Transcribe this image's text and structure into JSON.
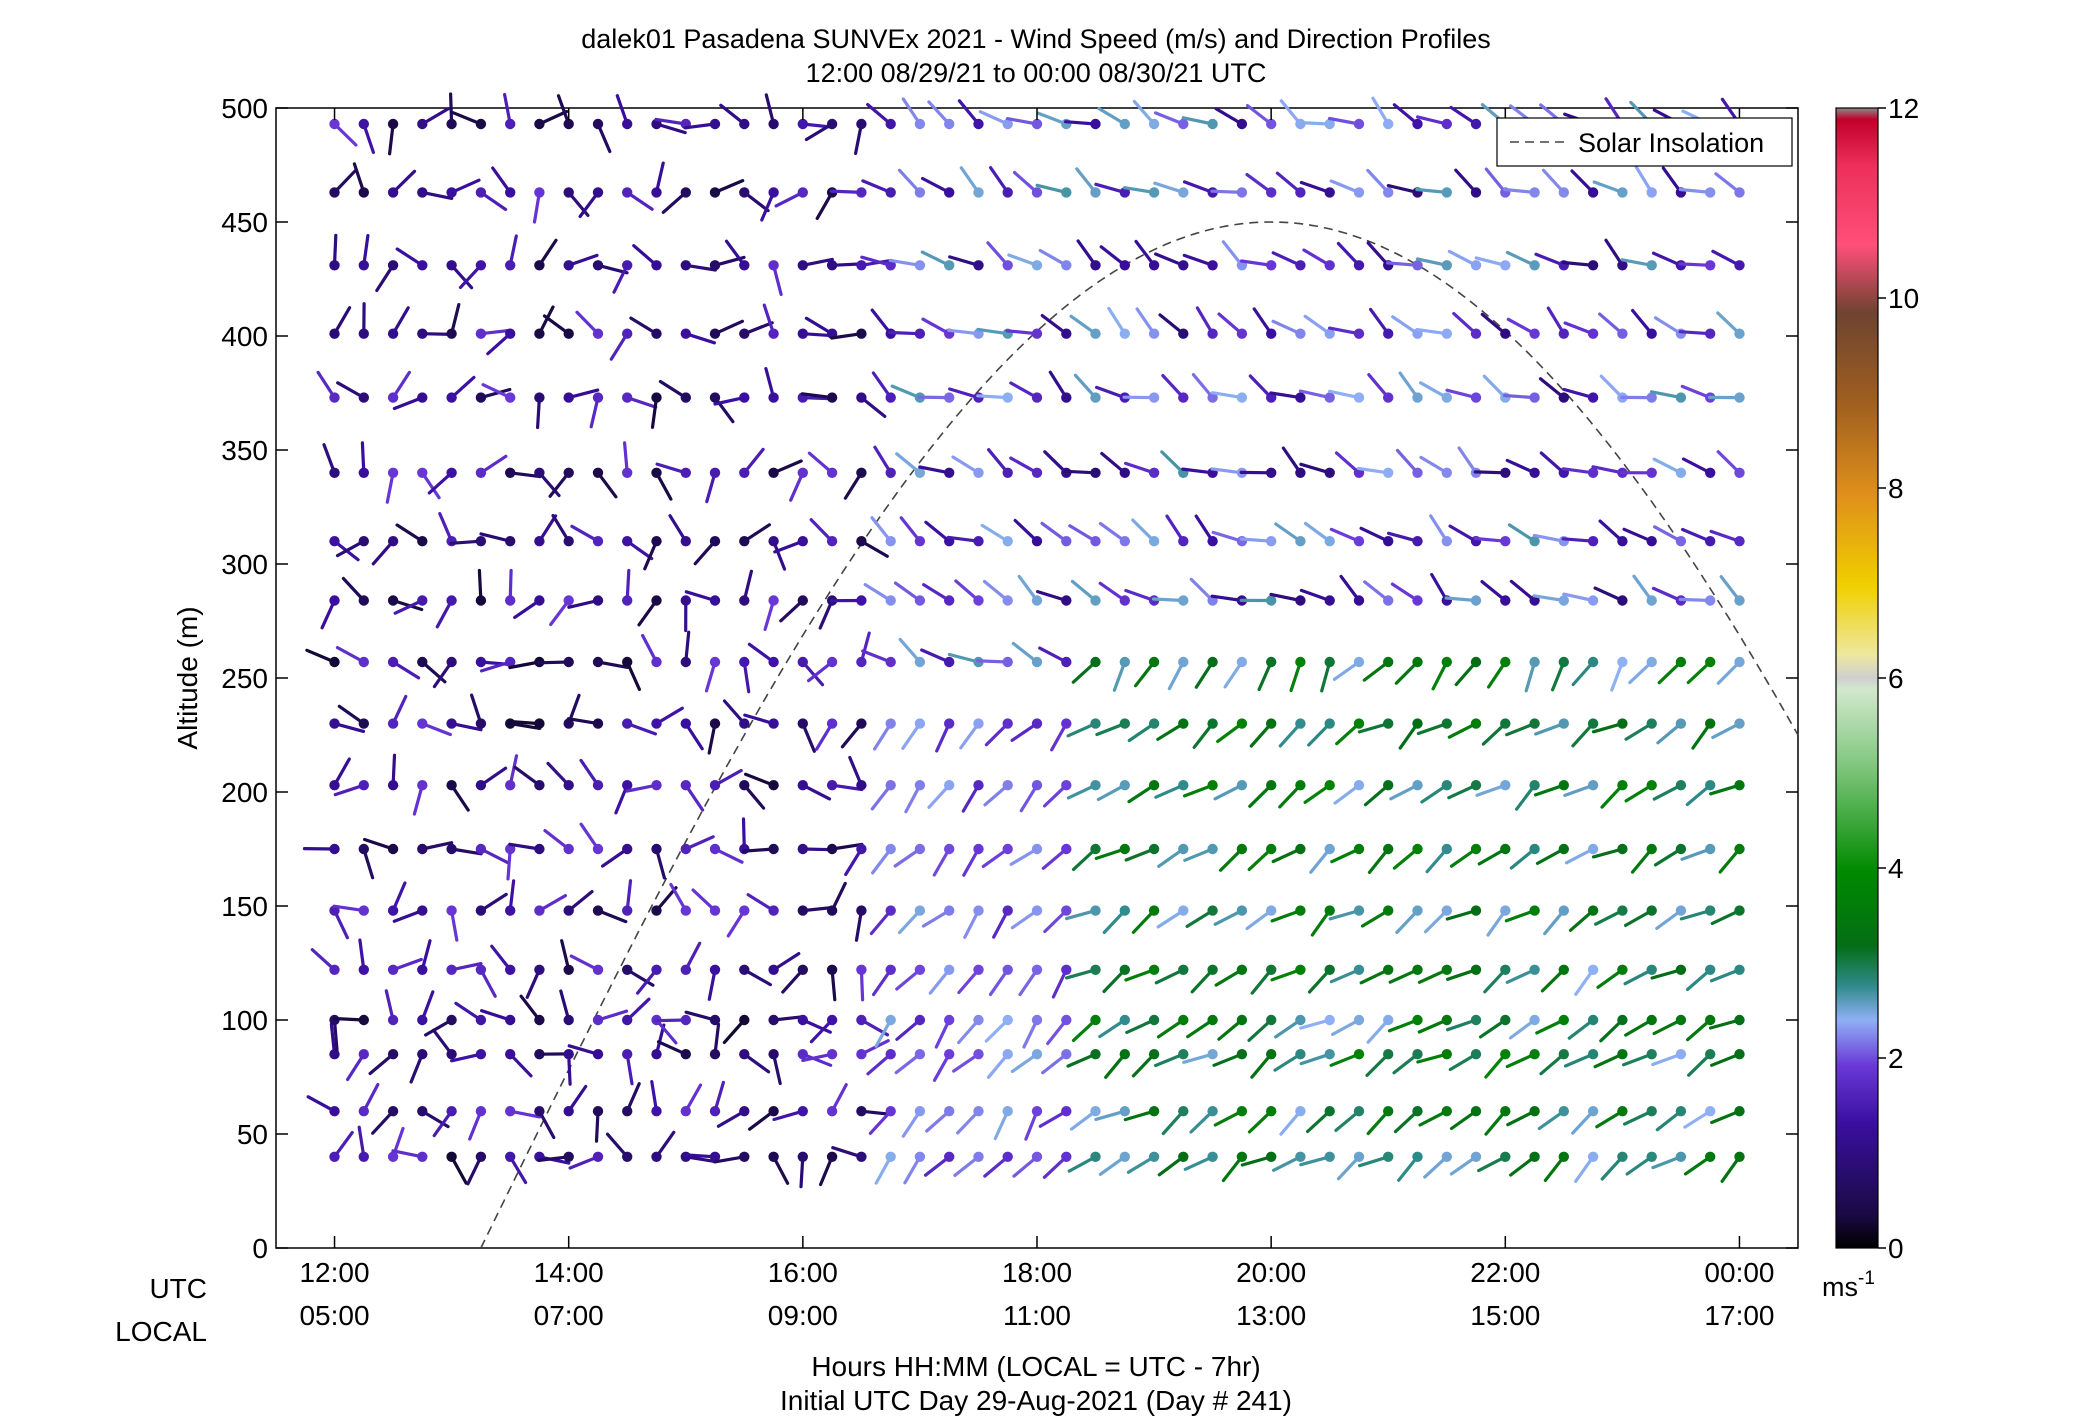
{
  "chart_data": {
    "type": "wind-profile",
    "title": "dalek01 Pasadena SUNVEx 2021 - Wind Speed (m/s) and Direction Profiles",
    "subtitle": "12:00 08/29/21 to 00:00 08/30/21  UTC",
    "ylabel": "Altitude (m)",
    "ylim": [
      0,
      500
    ],
    "yticks": [
      0,
      50,
      100,
      150,
      200,
      250,
      300,
      350,
      400,
      450,
      500
    ],
    "xlim_hours": [
      11.5,
      24.5
    ],
    "xticks_hours": [
      12,
      14,
      16,
      18,
      20,
      22,
      24
    ],
    "xticks_utc": [
      "12:00",
      "14:00",
      "16:00",
      "18:00",
      "20:00",
      "22:00",
      "00:00"
    ],
    "xticks_local": [
      "05:00",
      "07:00",
      "09:00",
      "11:00",
      "13:00",
      "15:00",
      "17:00"
    ],
    "row_labels": {
      "utc": "UTC",
      "local": "LOCAL"
    },
    "xlabel": "Hours HH:MM  (LOCAL = UTC - 7hr)",
    "xlabel2": "Initial UTC Day 29-Aug-2021 (Day # 241)",
    "legend": {
      "label": "Solar Insolation",
      "position": "top-right"
    },
    "colorbar": {
      "range": [
        0,
        12
      ],
      "ticks": [
        0,
        2,
        4,
        6,
        8,
        10,
        12
      ],
      "unit_base": "ms",
      "unit_exp": "-1"
    },
    "solar_insolation": {
      "start_hour": 13.25,
      "peak_hour": 20.0,
      "peak_altitude": 450,
      "shape": "sine arch"
    },
    "wind_field": {
      "time_step_hours": 0.25,
      "start_hour": 12.0,
      "end_hour": 24.0,
      "altitudes": [
        40,
        60,
        85,
        100,
        122,
        148,
        175,
        203,
        230,
        257,
        284,
        310,
        340,
        373,
        401,
        431,
        463,
        493
      ],
      "regimes": [
        {
          "hours": [
            12.0,
            16.75
          ],
          "altitudes": [
            40,
            493
          ],
          "speed_ms": [
            0.3,
            1.8
          ],
          "direction": "variable, mostly westerly/northerly"
        },
        {
          "hours": [
            16.75,
            18.5
          ],
          "altitudes": [
            40,
            230
          ],
          "speed_ms": [
            1.5,
            2.3
          ],
          "direction": "southwest"
        },
        {
          "hours": [
            18.5,
            24.0
          ],
          "altitudes": [
            40,
            257
          ],
          "speed_ms": [
            2.3,
            3.8
          ],
          "direction": "southwest"
        },
        {
          "hours": [
            16.75,
            24.0
          ],
          "altitudes": [
            284,
            493
          ],
          "speed_ms": [
            0.8,
            2.8
          ],
          "direction": "west to northwest"
        }
      ]
    }
  }
}
